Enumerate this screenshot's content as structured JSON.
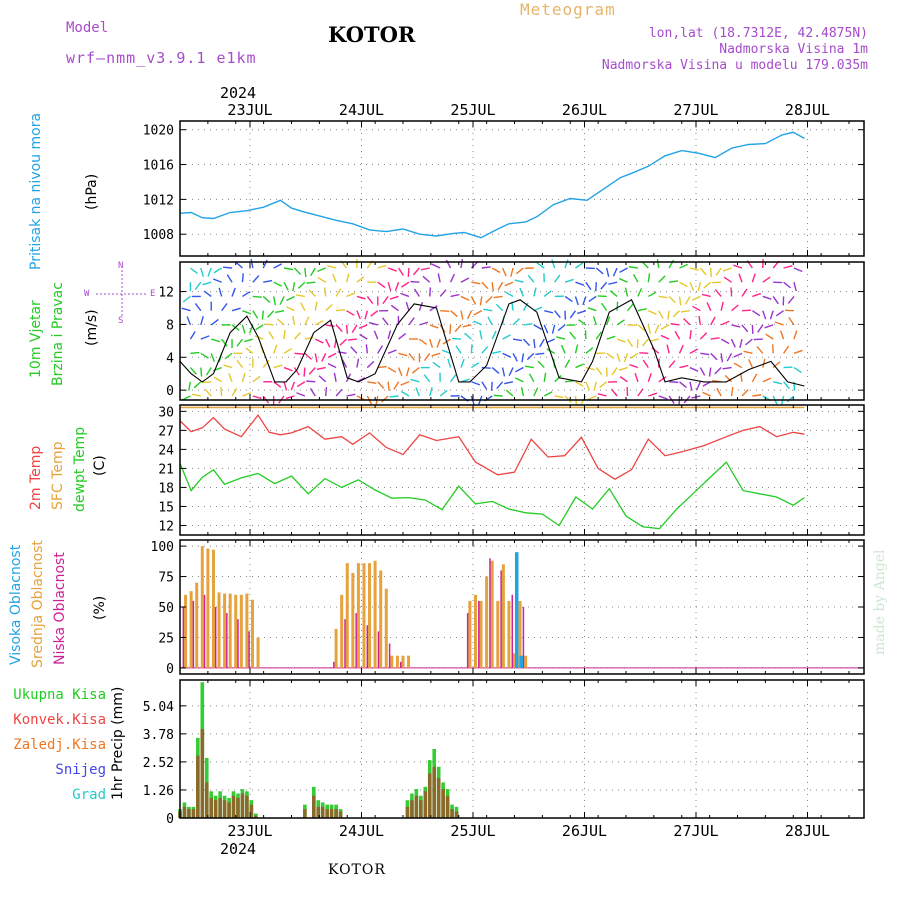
{
  "header": {
    "model_label": "Model",
    "model_name": "wrf–nmm_v3.9.1  e1km",
    "station": "KOTOR",
    "product": "Meteogram",
    "lonlat": "lon,lat (18.7312E, 42.4875N)",
    "elevation": "Nadmorska Visina 1m",
    "model_elevation": "Nadmorska Visina u modelu 179.035m"
  },
  "footer": {
    "station": "KOTOR",
    "credit": "made by Angel"
  },
  "colors": {
    "pressure": "#22a3e6",
    "temp_2m": "#ee4444",
    "sfc_temp": "#e6a23c",
    "dewpoint": "#22cc22",
    "high_cloud": "#22a3e6",
    "mid_cloud": "#e6a23c",
    "low_cloud": "#cc2299",
    "total_precip": "#33cc33",
    "conv_precip": "#ee4444",
    "strat_precip": "#ee7722",
    "snow": "#4444ee",
    "graupel": "#22cccc"
  },
  "chart_data": [
    {
      "type": "line",
      "title": "Pritisak na nivou mora",
      "ylabel": "(hPa)",
      "ylim": [
        1005.5,
        1021
      ],
      "yticks": [
        "1020",
        "1016",
        "1012",
        "1008"
      ],
      "x_top": [
        "23JUL",
        "24JUL",
        "25JUL",
        "26JUL",
        "27JUL",
        "28JUL"
      ],
      "year": "2024",
      "grid": true,
      "series": [
        {
          "x": [
            0,
            0.1,
            0.2,
            0.3,
            0.45,
            0.6,
            0.75,
            0.9,
            1.0,
            1.1,
            1.25,
            1.4,
            1.55,
            1.7,
            1.85,
            2.0,
            2.15,
            2.3,
            2.45,
            2.55,
            2.7,
            2.85,
            2.95,
            3.1,
            3.2,
            3.35,
            3.5,
            3.65,
            3.8,
            3.95,
            4.05,
            4.2,
            4.35,
            4.5,
            4.65,
            4.8,
            4.95,
            5.1,
            5.25,
            5.4,
            5.5,
            5.6
          ],
          "values": [
            1010.4,
            1010.5,
            1009.9,
            1009.8,
            1010.5,
            1010.7,
            1011.1,
            1011.9,
            1011.0,
            1010.6,
            1010.1,
            1009.6,
            1009.2,
            1008.5,
            1008.3,
            1008.6,
            1008.0,
            1007.8,
            1008.1,
            1008.2,
            1007.6,
            1008.6,
            1009.2,
            1009.4,
            1010.0,
            1011.4,
            1012.1,
            1011.9,
            1013.2,
            1014.5,
            1015.0,
            1015.8,
            1017.0,
            1017.6,
            1017.3,
            1016.8,
            1017.9,
            1018.3,
            1018.4,
            1019.4,
            1019.7,
            1019.0
          ]
        }
      ]
    },
    {
      "type": "line",
      "title": "10m Vjetar Brzina i Pravac",
      "ylabel": "(m/s)",
      "ylim": [
        -1.2,
        15.6
      ],
      "yticks": [
        "12",
        "8",
        "4",
        "0"
      ],
      "compass": [
        "N",
        "E",
        "S",
        "W"
      ],
      "barb_colors": [
        "#22cccc",
        "#3355ee",
        "#22cc22",
        "#e6c82a",
        "#ff2288",
        "#9933cc",
        "#ee7722"
      ],
      "grid": true,
      "series": [
        {
          "name": "speed",
          "x": [
            0,
            0.1,
            0.2,
            0.3,
            0.45,
            0.6,
            0.7,
            0.85,
            0.95,
            1.05,
            1.2,
            1.35,
            1.5,
            1.6,
            1.75,
            1.95,
            2.1,
            2.3,
            2.5,
            2.6,
            2.75,
            2.95,
            3.05,
            3.2,
            3.4,
            3.6,
            3.7,
            3.85,
            4.05,
            4.25,
            4.35,
            4.5,
            4.7,
            4.9,
            5.1,
            5.3,
            5.45,
            5.6
          ],
          "values": [
            3.5,
            2.0,
            1.0,
            2.0,
            7.0,
            9.0,
            6.5,
            1.0,
            1.0,
            2.5,
            7.0,
            8.5,
            1.5,
            1.0,
            2.0,
            8.0,
            10.5,
            10.0,
            1.0,
            1.0,
            3.0,
            10.5,
            11.0,
            9.5,
            1.5,
            1.0,
            3.5,
            9.5,
            11.0,
            5.0,
            1.0,
            1.5,
            1.0,
            1.0,
            2.5,
            3.5,
            1.0,
            0.5
          ]
        }
      ]
    },
    {
      "type": "line",
      "title": "2m Temp / SFC Temp / dewpt Temp",
      "ylabel": "(C)",
      "ylim": [
        10.5,
        31
      ],
      "yticks": [
        "30",
        "27",
        "24",
        "21",
        "18",
        "15",
        "12"
      ],
      "grid": true,
      "series": [
        {
          "name": "2m Temp",
          "x": [
            0,
            0.1,
            0.2,
            0.3,
            0.4,
            0.55,
            0.7,
            0.8,
            0.9,
            1.0,
            1.15,
            1.3,
            1.45,
            1.55,
            1.7,
            1.85,
            2.0,
            2.15,
            2.3,
            2.5,
            2.65,
            2.85,
            3.0,
            3.15,
            3.3,
            3.45,
            3.6,
            3.75,
            3.9,
            4.05,
            4.2,
            4.35,
            4.5,
            4.7,
            4.9,
            5.05,
            5.2,
            5.35,
            5.5,
            5.6
          ],
          "values": [
            28.5,
            26.8,
            27.4,
            29.0,
            27.2,
            26.0,
            29.4,
            26.7,
            26.3,
            26.6,
            27.6,
            25.6,
            26.0,
            24.8,
            26.6,
            24.3,
            23.2,
            26.3,
            25.4,
            26.0,
            22.0,
            20.0,
            20.4,
            25.6,
            22.8,
            23.0,
            25.9,
            21.0,
            19.3,
            20.8,
            25.6,
            23.0,
            23.6,
            24.6,
            26.0,
            27.0,
            27.6,
            26.0,
            26.7,
            26.4
          ]
        },
        {
          "name": "SFC Temp",
          "x": [
            0,
            5.6
          ],
          "values": [
            30.6,
            30.6
          ]
        },
        {
          "name": "dewpt Temp",
          "x": [
            0,
            0.1,
            0.2,
            0.3,
            0.4,
            0.55,
            0.7,
            0.85,
            1.0,
            1.15,
            1.3,
            1.45,
            1.6,
            1.75,
            1.9,
            2.05,
            2.2,
            2.35,
            2.5,
            2.65,
            2.8,
            2.95,
            3.1,
            3.25,
            3.4,
            3.55,
            3.7,
            3.85,
            4.0,
            4.15,
            4.3,
            4.45,
            4.6,
            4.75,
            4.9,
            5.05,
            5.2,
            5.35,
            5.5,
            5.6
          ],
          "values": [
            21.8,
            17.5,
            19.6,
            20.8,
            18.5,
            19.5,
            20.2,
            18.6,
            19.8,
            17.0,
            19.4,
            18.0,
            19.2,
            17.6,
            16.3,
            16.4,
            16.0,
            14.5,
            18.2,
            15.4,
            15.8,
            14.6,
            14.0,
            13.8,
            12.0,
            16.5,
            14.6,
            17.8,
            13.5,
            11.8,
            11.5,
            14.5,
            17.0,
            19.5,
            22.0,
            17.5,
            17.0,
            16.5,
            15.2,
            16.4
          ]
        }
      ]
    },
    {
      "type": "bar",
      "title": "Visoka / Srednja / Niska Oblacnost",
      "ylabel": "(%)",
      "ylim": [
        -5,
        105
      ],
      "yticks": [
        "100",
        "75",
        "50",
        "25",
        "0"
      ],
      "grid": true,
      "series": [
        {
          "name": "Srednja Oblacnost",
          "x": [
            0.05,
            0.1,
            0.15,
            0.2,
            0.25,
            0.3,
            0.35,
            0.4,
            0.45,
            0.5,
            0.55,
            0.6,
            0.65,
            0.7,
            1.4,
            1.45,
            1.5,
            1.55,
            1.6,
            1.65,
            1.7,
            1.75,
            1.8,
            1.85,
            1.9,
            1.95,
            2.0,
            2.05,
            2.6,
            2.65,
            2.7,
            2.75,
            2.8,
            2.85,
            2.9,
            2.95,
            3.0,
            3.05,
            3.1
          ],
          "values": [
            60,
            63,
            70,
            100,
            98,
            97,
            62,
            61,
            61,
            60,
            60,
            61,
            56,
            25,
            32,
            60,
            86,
            78,
            86,
            86,
            86,
            88,
            80,
            65,
            10,
            10,
            10,
            10,
            55,
            60,
            55,
            75,
            88,
            55,
            85,
            55,
            12,
            55,
            10
          ]
        },
        {
          "name": "Niska Oblacnost",
          "x": [
            0.03,
            0.12,
            0.22,
            0.32,
            0.42,
            0.52,
            0.62,
            1.38,
            1.48,
            1.58,
            1.68,
            1.78,
            1.88,
            1.98,
            2.58,
            2.68,
            2.78,
            2.88,
            2.98,
            3.08
          ],
          "values": [
            50,
            55,
            60,
            50,
            45,
            40,
            30,
            5,
            40,
            45,
            35,
            30,
            20,
            5,
            45,
            55,
            90,
            80,
            60,
            50
          ]
        },
        {
          "name": "Visoka Oblacnost",
          "x": [
            3.02,
            3.06
          ],
          "values": [
            95,
            10
          ]
        }
      ]
    },
    {
      "type": "bar",
      "title": "1hr Precip",
      "ylabel": "1hr Precip  (mm)",
      "ylim": [
        0,
        6.2
      ],
      "yticks": [
        "5.04",
        "3.78",
        "2.52",
        "1.26",
        "0"
      ],
      "x_bottom": [
        "23JUL",
        "24JUL",
        "25JUL",
        "26JUL",
        "27JUL",
        "28JUL"
      ],
      "year": "2024",
      "legend": [
        "Ukupna Kisa",
        "Konvek.Kisa",
        "Zaledj.Kisa",
        "Snijeg",
        "Grad"
      ],
      "grid": true,
      "series": [
        {
          "name": "Ukupna Kisa",
          "x": [
            0.0,
            0.04,
            0.08,
            0.12,
            0.16,
            0.2,
            0.24,
            0.28,
            0.32,
            0.36,
            0.4,
            0.44,
            0.48,
            0.52,
            0.56,
            0.6,
            0.64,
            0.68,
            1.12,
            1.2,
            1.24,
            1.28,
            1.32,
            1.36,
            1.4,
            1.44,
            2.04,
            2.08,
            2.12,
            2.16,
            2.2,
            2.24,
            2.28,
            2.32,
            2.36,
            2.4,
            2.44,
            2.48
          ],
          "values": [
            0.4,
            0.7,
            0.5,
            0.5,
            3.6,
            6.1,
            2.7,
            1.2,
            1.0,
            1.2,
            1.0,
            0.9,
            1.2,
            1.1,
            1.3,
            1.2,
            0.8,
            0.2,
            0.6,
            1.4,
            0.8,
            0.7,
            0.6,
            0.6,
            0.6,
            0.4,
            0.8,
            1.1,
            1.3,
            1.0,
            1.4,
            2.6,
            3.1,
            2.3,
            1.6,
            1.3,
            0.6,
            0.5
          ]
        },
        {
          "name": "Konvek.Kisa",
          "x": [
            0.0,
            0.04,
            0.08,
            0.12,
            0.16,
            0.2,
            0.24,
            0.28,
            0.32,
            0.36,
            0.4,
            0.44,
            0.48,
            0.52,
            0.56,
            0.6,
            0.64,
            0.68,
            1.12,
            1.2,
            1.24,
            1.28,
            1.32,
            1.36,
            1.4,
            1.44,
            2.04,
            2.08,
            2.12,
            2.16,
            2.2,
            2.24,
            2.28,
            2.32,
            2.36,
            2.4,
            2.44,
            2.48
          ],
          "values": [
            0.3,
            0.5,
            0.4,
            0.4,
            2.8,
            4.0,
            1.6,
            0.9,
            0.8,
            0.9,
            0.8,
            0.7,
            1.0,
            0.9,
            1.1,
            1.0,
            0.6,
            0.1,
            0.4,
            1.0,
            0.5,
            0.5,
            0.4,
            0.4,
            0.4,
            0.3,
            0.5,
            0.8,
            1.0,
            0.8,
            1.2,
            2.0,
            2.3,
            1.8,
            1.3,
            1.0,
            0.4,
            0.3
          ]
        }
      ]
    }
  ]
}
